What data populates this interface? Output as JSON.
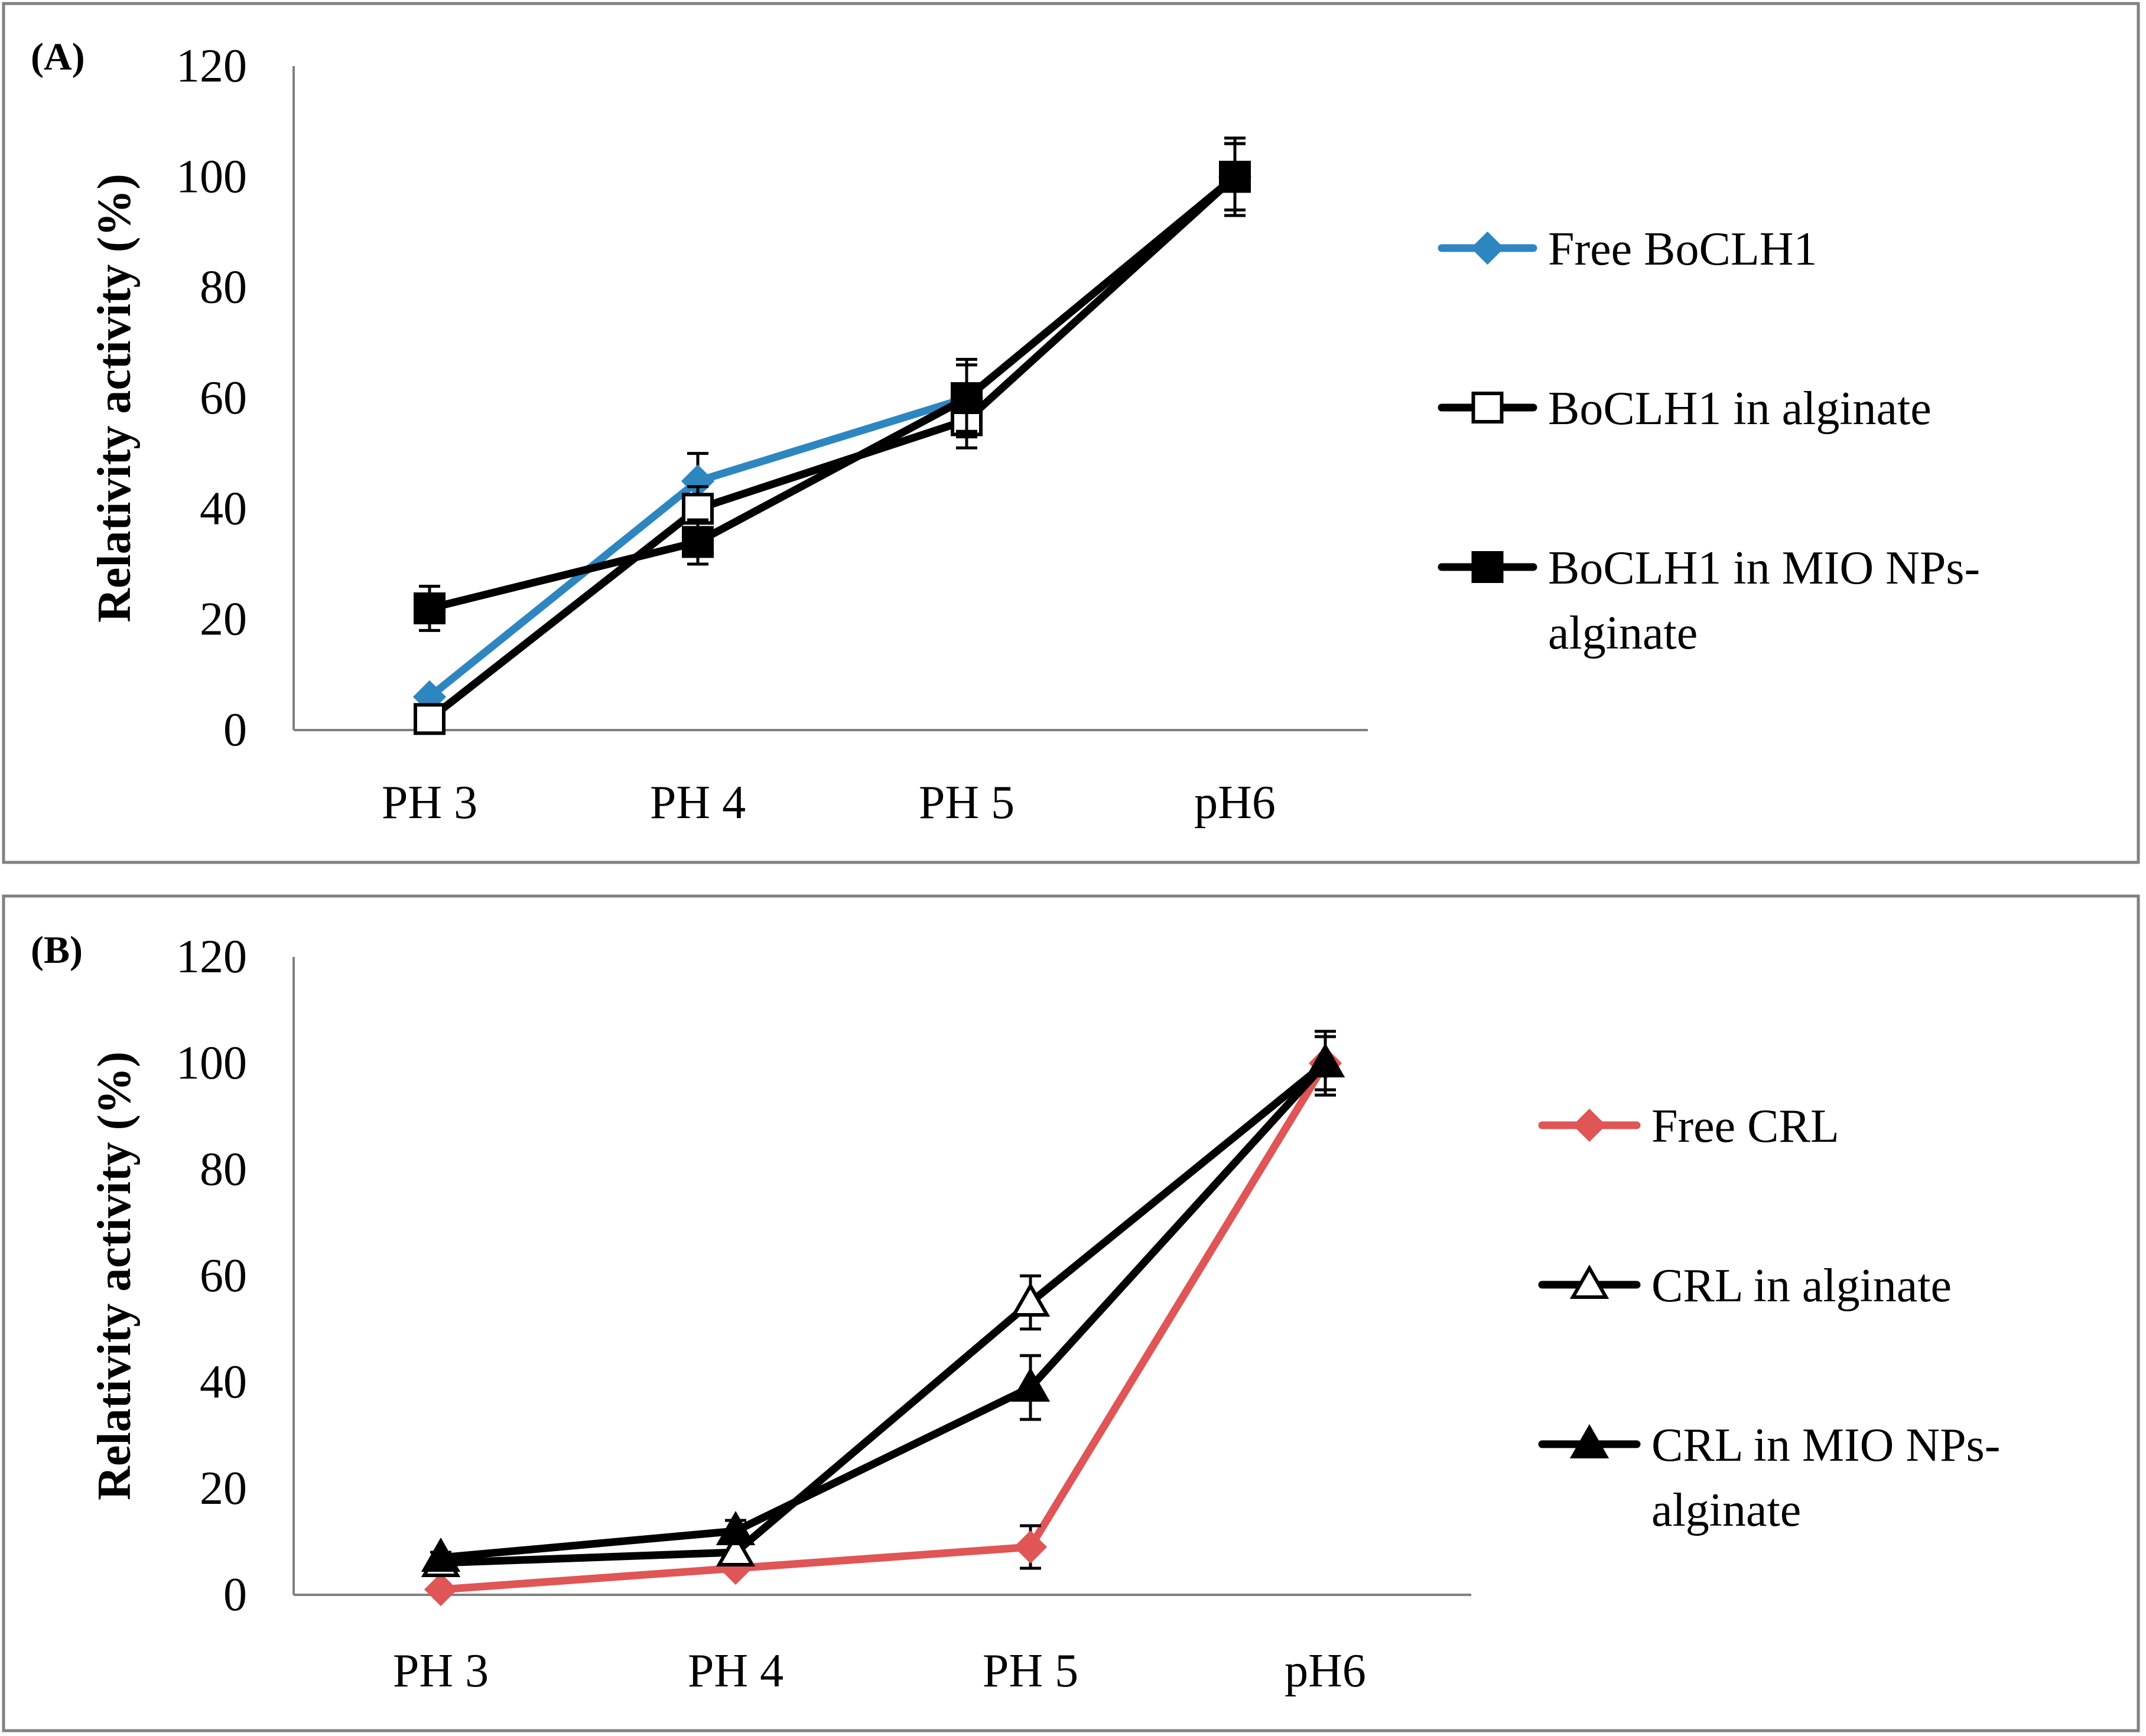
{
  "chart_data": [
    {
      "type": "line",
      "panel_label": "(A)",
      "title": "",
      "xlabel": "",
      "ylabel": "Relativity activity (%)",
      "categories": [
        "PH 3",
        "PH 4",
        "PH 5",
        "pH6"
      ],
      "yticks": [
        "0",
        "20",
        "40",
        "60",
        "80",
        "100",
        "120"
      ],
      "ylim": [
        0,
        120
      ],
      "grid": false,
      "legend_position": "right",
      "series": [
        {
          "name": "Free BoCLH1",
          "color": "#2e86c1",
          "marker": "diamond-filled",
          "values": [
            6,
            45,
            60,
            100
          ],
          "errors": [
            0,
            5,
            7,
            7
          ]
        },
        {
          "name": "BoCLH1 in alginate",
          "color": "#000000",
          "marker": "square-open",
          "values": [
            2,
            40,
            56,
            100
          ],
          "errors": [
            0,
            4,
            5,
            6
          ]
        },
        {
          "name": "BoCLH1 in MIO NPs-alginate",
          "color": "#000000",
          "marker": "square-filled",
          "values": [
            22,
            34,
            60,
            100
          ],
          "errors": [
            4,
            4,
            6,
            6
          ]
        }
      ]
    },
    {
      "type": "line",
      "panel_label": "(B)",
      "title": "",
      "xlabel": "",
      "ylabel": "Relativity activity (%)",
      "categories": [
        "PH 3",
        "PH 4",
        "PH 5",
        "pH6"
      ],
      "yticks": [
        "0",
        "20",
        "40",
        "60",
        "80",
        "100",
        "120"
      ],
      "ylim": [
        0,
        120
      ],
      "grid": false,
      "legend_position": "right",
      "series": [
        {
          "name": "Free CRL",
          "color": "#e05555",
          "marker": "diamond-filled",
          "values": [
            1,
            5,
            9,
            100
          ],
          "errors": [
            0,
            0,
            4,
            5
          ]
        },
        {
          "name": "CRL in alginate",
          "color": "#000000",
          "marker": "triangle-open",
          "values": [
            6,
            8,
            55,
            100
          ],
          "errors": [
            0,
            2,
            5,
            6
          ]
        },
        {
          "name": "CRL in MIO NPs-alginate",
          "color": "#000000",
          "marker": "triangle-filled",
          "values": [
            7,
            12,
            39,
            100
          ],
          "errors": [
            1,
            2,
            6,
            6
          ]
        }
      ]
    }
  ]
}
